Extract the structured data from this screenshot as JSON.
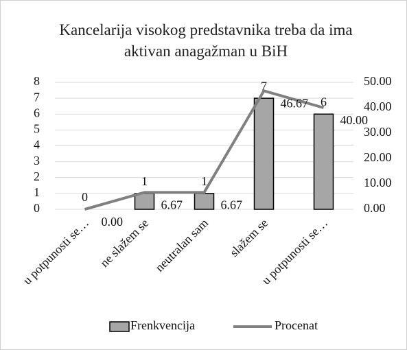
{
  "chart_data": {
    "type": "bar",
    "title": "Kancelarija visokog predstavnika treba da ima aktivan anagažman u BiH",
    "categories": [
      "u potpunosti se…",
      "ne slažem se",
      "neutralan sam",
      "slažem se",
      "u potpunosti se…"
    ],
    "series": [
      {
        "name": "Frenkvencija",
        "type": "bar",
        "color": "#a6a6a6",
        "values": [
          0,
          1,
          1,
          7,
          6
        ]
      },
      {
        "name": "Procenat",
        "type": "line",
        "axis": "y2",
        "color": "#808080",
        "values": [
          0,
          6.67,
          6.67,
          46.67,
          40
        ],
        "value_labels": [
          "0.00",
          "6.67",
          "6.67",
          "46.67",
          "40.00"
        ]
      }
    ],
    "ylim": [
      0,
      8
    ],
    "yticks": [
      0,
      1,
      2,
      3,
      4,
      5,
      6,
      7,
      8
    ],
    "y2lim": [
      0,
      50
    ],
    "y2ticks": [
      {
        "value": 0,
        "label": "0.00"
      },
      {
        "value": 10,
        "label": "10.00"
      },
      {
        "value": 20,
        "label": "20.00"
      },
      {
        "value": 30,
        "label": "30.00"
      },
      {
        "value": 40,
        "label": "40.00"
      },
      {
        "value": 50,
        "label": "50.00"
      }
    ],
    "grid": true,
    "legend": "bottom"
  }
}
